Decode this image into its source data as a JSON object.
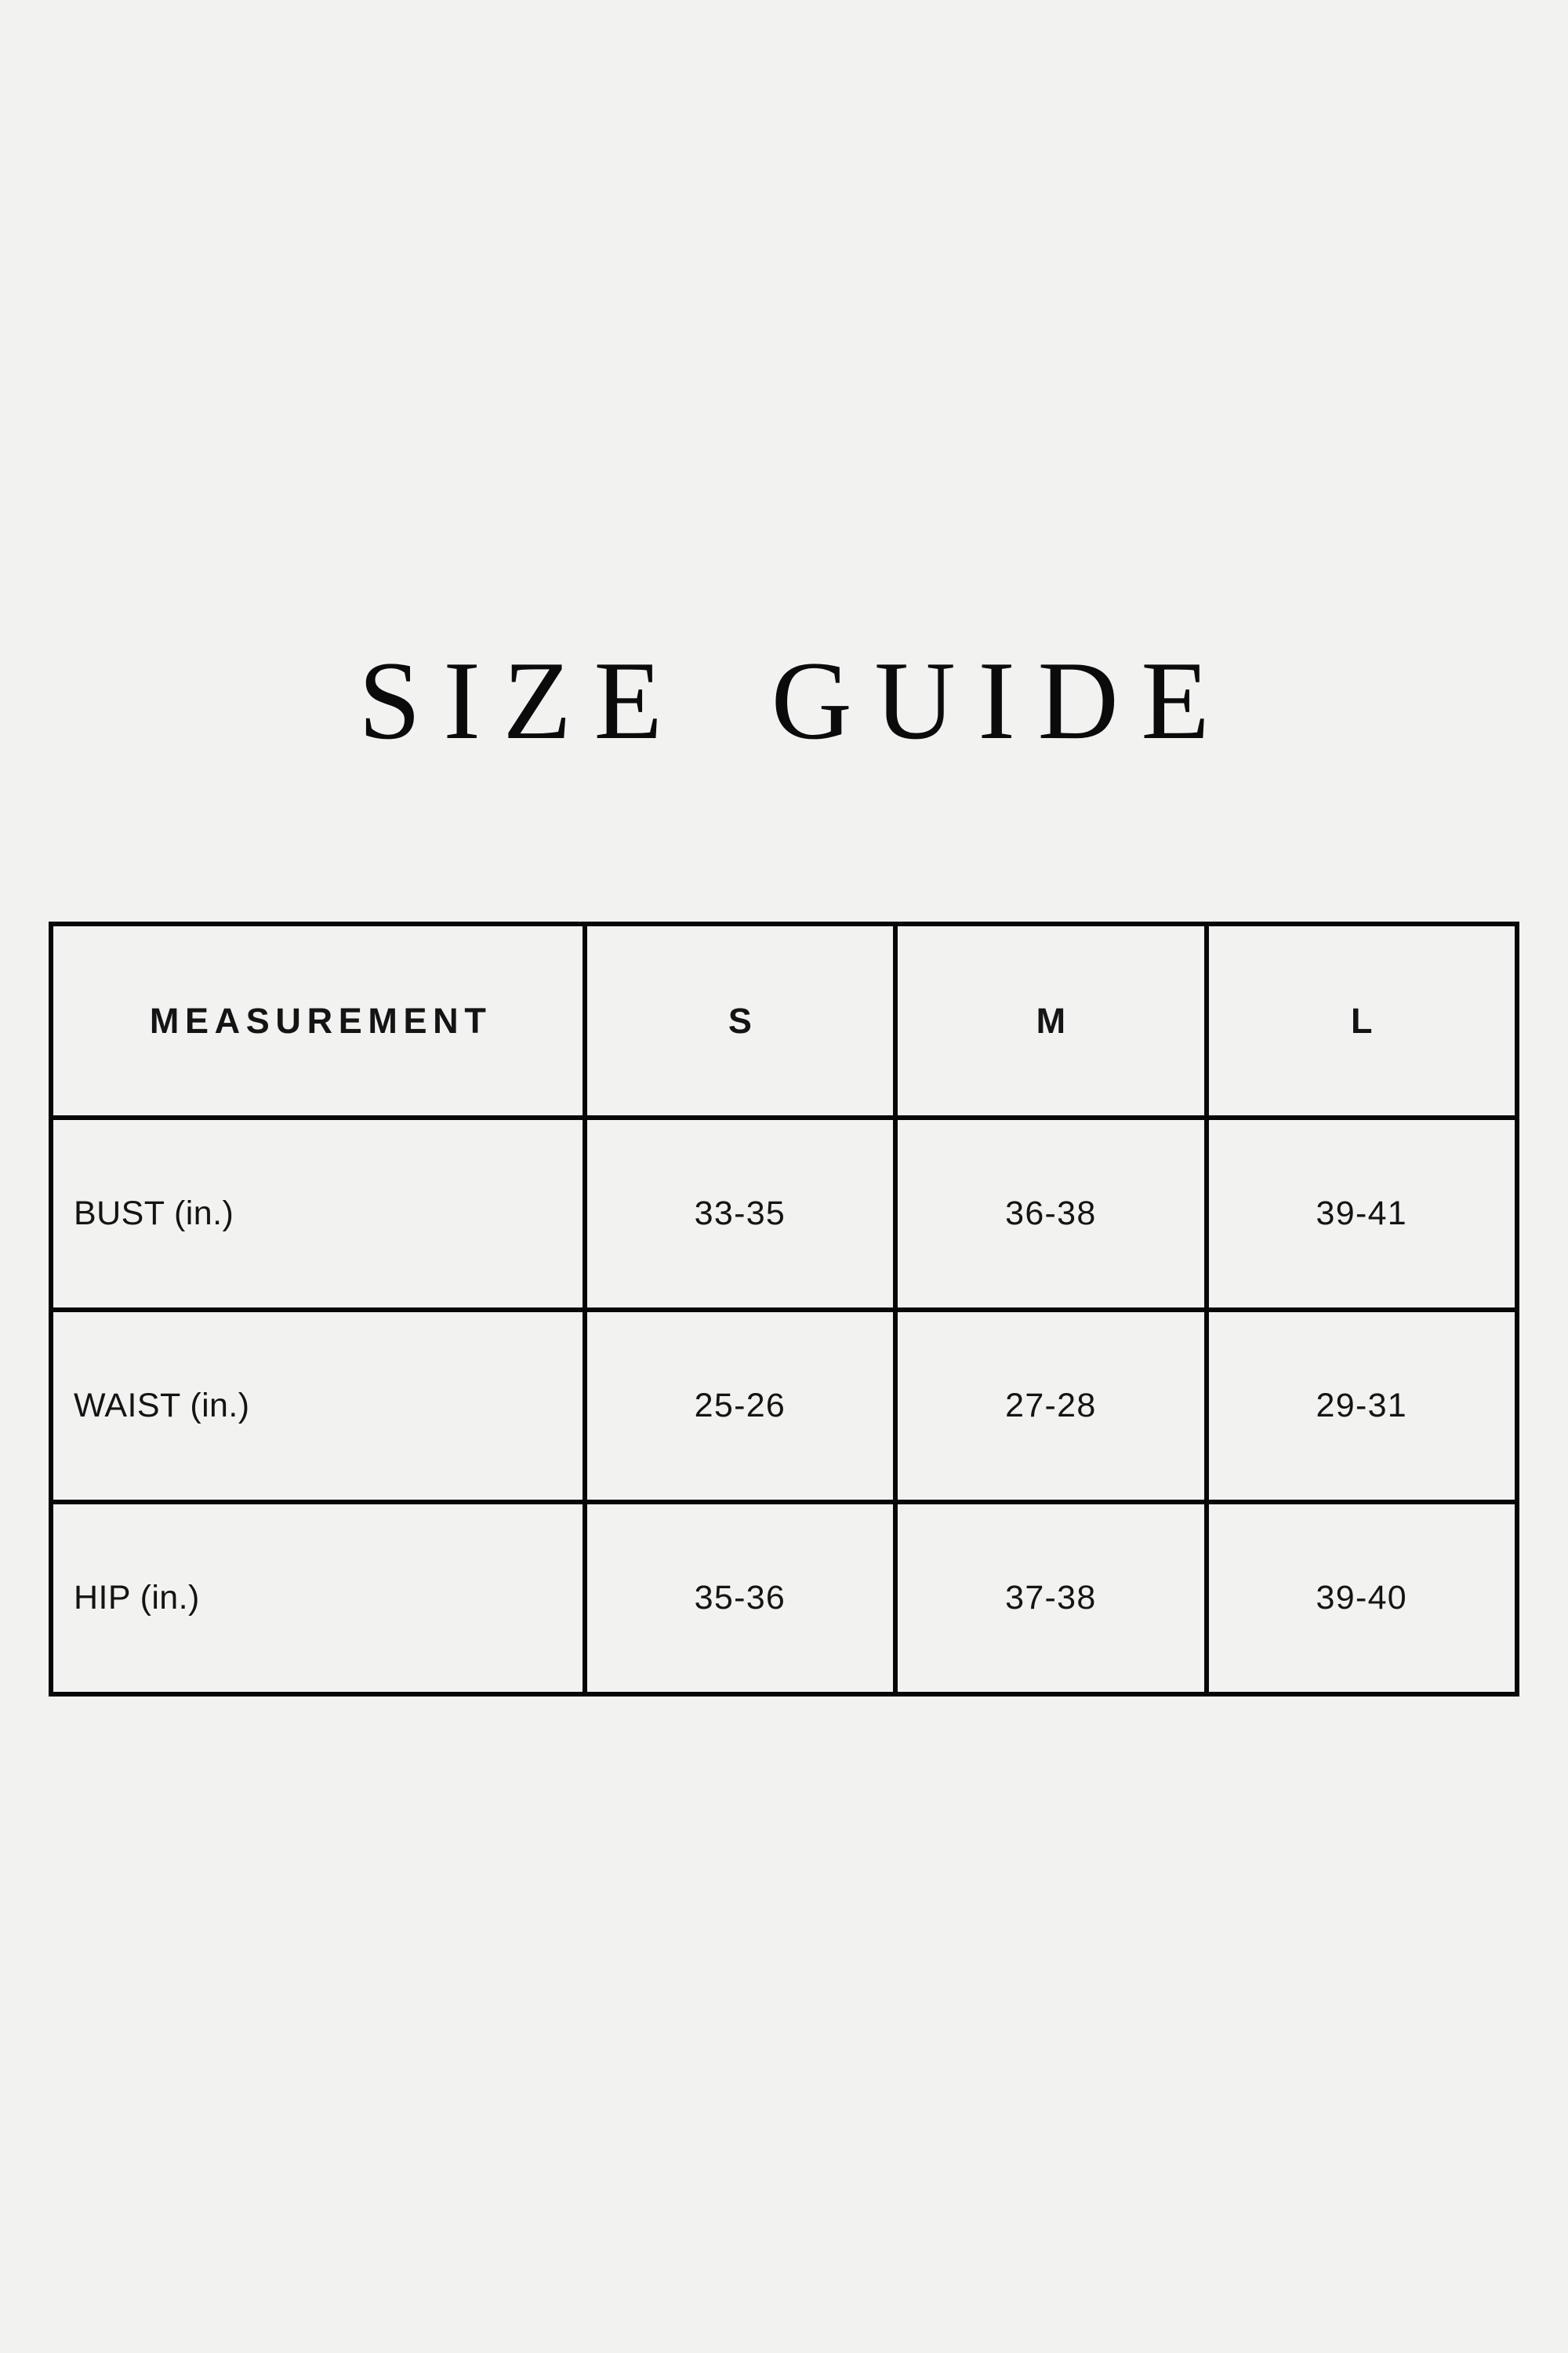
{
  "page": {
    "title": "SIZE GUIDE",
    "background_color": "#f2f2f0",
    "border_color": "#070707",
    "text_color": "#141414"
  },
  "table": {
    "columns": [
      "MEASUREMENT",
      "S",
      "M",
      "L"
    ],
    "rows": [
      {
        "label": "BUST (in.)",
        "values": [
          "33-35",
          "36-38",
          "39-41"
        ]
      },
      {
        "label": "WAIST (in.)",
        "values": [
          "25-26",
          "27-28",
          "29-31"
        ]
      },
      {
        "label": "HIP (in.)",
        "values": [
          "35-36",
          "37-38",
          "39-40"
        ]
      }
    ]
  }
}
